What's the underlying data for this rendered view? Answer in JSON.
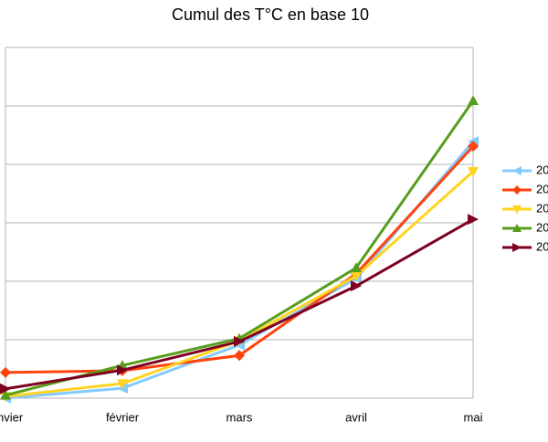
{
  "chart_data": {
    "type": "line",
    "title": "Cumul des T°C en base 10",
    "categories": [
      "janvier",
      "février",
      "mars",
      "avril",
      "mai"
    ],
    "series": [
      {
        "name": "20",
        "color": "#83caff",
        "marker": "left",
        "values": [
          0,
          0.17,
          0.91,
          2.05,
          4.39
        ]
      },
      {
        "name": "20",
        "color": "#ff420e",
        "marker": "diamond",
        "values": [
          0.44,
          0.47,
          0.73,
          2.13,
          4.31
        ]
      },
      {
        "name": "20",
        "color": "#ffd320",
        "marker": "down",
        "values": [
          0.03,
          0.25,
          0.98,
          2.09,
          3.88
        ]
      },
      {
        "name": "20",
        "color": "#579d1c",
        "marker": "up",
        "values": [
          0.05,
          0.56,
          1.02,
          2.23,
          5.09
        ]
      },
      {
        "name": "20",
        "color": "#7e0021",
        "marker": "right",
        "values": [
          0.16,
          0.48,
          0.97,
          1.92,
          3.06
        ]
      }
    ],
    "ylim": [
      0,
      6
    ],
    "yticks": [
      0,
      1,
      2,
      3,
      4,
      5,
      6
    ],
    "grid": true,
    "legend": "right"
  }
}
